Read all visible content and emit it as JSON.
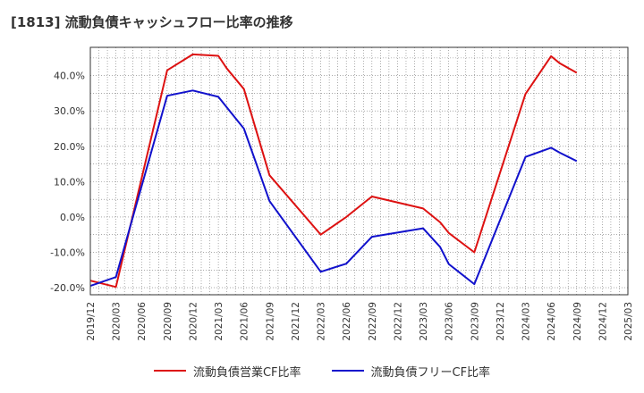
{
  "title": "[1813]  流動負債キャッシュフロー比率の推移",
  "colors": {
    "operating": "#dd1111",
    "free": "#1111cc"
  },
  "chart_data": {
    "type": "line",
    "title": "[1813]  流動負債キャッシュフロー比率の推移",
    "xlabel": "",
    "ylabel": "",
    "x_ticks": [
      "2019/12",
      "2020/03",
      "2020/06",
      "2020/09",
      "2020/12",
      "2021/03",
      "2021/06",
      "2021/09",
      "2021/12",
      "2022/03",
      "2022/06",
      "2022/09",
      "2022/12",
      "2023/03",
      "2023/06",
      "2023/09",
      "2023/12",
      "2024/03",
      "2024/06",
      "2024/09",
      "2024/12",
      "2025/03"
    ],
    "y_ticks": [
      "-20.0%",
      "-10.0%",
      "0.0%",
      "10.0%",
      "20.0%",
      "30.0%",
      "40.0%"
    ],
    "y_tick_values": [
      -20,
      -10,
      0,
      10,
      20,
      30,
      40
    ],
    "ylim": [
      -22,
      48
    ],
    "grid": true,
    "legend_position": "bottom",
    "series": [
      {
        "name": "流動負債営業CF比率",
        "color": "#dd1111",
        "x": [
          "2019/12",
          "2020/03",
          "2020/09",
          "2020/12",
          "2021/03",
          "2021/04",
          "2021/06",
          "2021/09",
          "2022/03",
          "2022/06",
          "2022/09",
          "2023/03",
          "2023/05",
          "2023/06",
          "2023/09",
          "2024/03",
          "2024/06",
          "2024/07",
          "2024/09"
        ],
        "values": [
          -18.0,
          -19.8,
          41.5,
          46.0,
          45.6,
          42.0,
          36.2,
          11.8,
          -5.0,
          0.0,
          5.8,
          2.4,
          -1.5,
          -4.5,
          -10.0,
          34.8,
          45.5,
          43.5,
          40.8
        ]
      },
      {
        "name": "流動負債フリーCF比率",
        "color": "#1111cc",
        "x": [
          "2019/12",
          "2020/03",
          "2020/09",
          "2020/12",
          "2021/03",
          "2021/04",
          "2021/06",
          "2021/09",
          "2022/03",
          "2022/06",
          "2022/09",
          "2023/03",
          "2023/05",
          "2023/06",
          "2023/09",
          "2024/03",
          "2024/06",
          "2024/07",
          "2024/09"
        ],
        "values": [
          -19.5,
          -17.0,
          34.3,
          35.8,
          34.0,
          31.0,
          25.0,
          4.5,
          -15.5,
          -13.2,
          -5.6,
          -3.2,
          -8.5,
          -13.3,
          -19.0,
          17.0,
          19.6,
          18.2,
          15.8
        ]
      }
    ]
  }
}
